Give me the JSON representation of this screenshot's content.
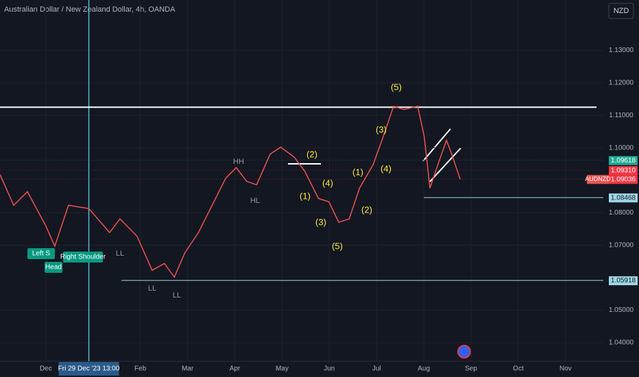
{
  "chart_data": {
    "type": "line",
    "title": "Australian Dollar / New Zealand Dollar, 4h, OANDA",
    "currency": "NZD",
    "x": [
      -0.97,
      -0.68,
      -0.39,
      0,
      0.19,
      0.48,
      0.91,
      1.35,
      1.57,
      1.93,
      2.25,
      2.51,
      2.72,
      2.94,
      3.23,
      3.52,
      3.81,
      4.03,
      4.25,
      4.46,
      4.75,
      4.97,
      5.26,
      5.48,
      5.77,
      5.99,
      6.2,
      6.42,
      6.64,
      6.93,
      7.14,
      7.36,
      7.58,
      7.87,
      8.01,
      8.13,
      8.3,
      8.48,
      8.59,
      8.77
    ],
    "series": [
      {
        "name": "AUDNZD",
        "color": "#ef5350",
        "values": [
          1.0918,
          1.0823,
          1.0865,
          1.076,
          1.0697,
          1.0823,
          1.0813,
          1.0739,
          1.0781,
          1.0728,
          1.0623,
          1.0644,
          1.0602,
          1.0676,
          1.0739,
          1.0823,
          1.0907,
          1.0939,
          1.0897,
          1.0886,
          1.0981,
          1.1002,
          1.0971,
          1.0928,
          1.0844,
          1.0834,
          1.0771,
          1.0781,
          1.0876,
          1.0949,
          1.1034,
          1.1128,
          1.1118,
          1.1128,
          1.1034,
          1.0876,
          1.0949,
          1.1023,
          1.0981,
          1.0903
        ]
      }
    ],
    "xlim": [
      -0.97,
      11.8
    ],
    "xticks": [
      {
        "value": 0,
        "label": "Dec"
      },
      {
        "value": 2,
        "label": "Feb"
      },
      {
        "value": 3,
        "label": "Mar"
      },
      {
        "value": 4,
        "label": "Apr"
      },
      {
        "value": 5,
        "label": "May"
      },
      {
        "value": 6,
        "label": "Jun"
      },
      {
        "value": 7,
        "label": "Jul"
      },
      {
        "value": 8,
        "label": "Aug"
      },
      {
        "value": 9,
        "label": "Sep"
      },
      {
        "value": 10,
        "label": "Oct"
      },
      {
        "value": 11,
        "label": "Nov"
      }
    ],
    "ylim": [
      1.0343,
      1.1455
    ],
    "yticks": [
      {
        "value": 1.13,
        "label": "1.13000"
      },
      {
        "value": 1.12,
        "label": "1.12000"
      },
      {
        "value": 1.11,
        "label": "1.11000"
      },
      {
        "value": 1.1,
        "label": "1.10000"
      },
      {
        "value": 1.08,
        "label": "1.08000"
      },
      {
        "value": 1.07,
        "label": "1.07000"
      },
      {
        "value": 1.05,
        "label": "1.05000"
      },
      {
        "value": 1.04,
        "label": "1.04000"
      }
    ],
    "price_labels": [
      {
        "value": 1.09618,
        "label": "1.09618",
        "color": "#22ab94"
      },
      {
        "value": 1.0931,
        "label": "1.09310",
        "color": "#f23645"
      },
      {
        "value": 1.09036,
        "label": "1.09036",
        "color": "#f23645"
      },
      {
        "value": 1.08468,
        "label": "1.08468",
        "color": "#9fd7e6"
      },
      {
        "value": 1.05918,
        "label": "1.05918",
        "color": "#9fd7e6"
      }
    ],
    "resistance": {
      "value": 1.1125,
      "color": "#ffffff"
    },
    "crosshair": {
      "x": 0.91,
      "label": "Fri 29 Dec '23  13:00"
    },
    "waves": {
      "color": "#ffeb3b",
      "labels": [
        "(5)",
        "(2)",
        "(4)",
        "(1)",
        "(3)",
        "(5)",
        "(1)",
        "(2)",
        "(3)",
        "(4)"
      ]
    },
    "swings": {
      "color": "#9598a1",
      "labels": [
        "HH",
        "HL",
        "LL",
        "LL",
        "LL"
      ]
    },
    "patterns": {
      "color": "#089981",
      "labels": [
        "Left S",
        "Right Shoulder",
        "Head"
      ]
    }
  }
}
